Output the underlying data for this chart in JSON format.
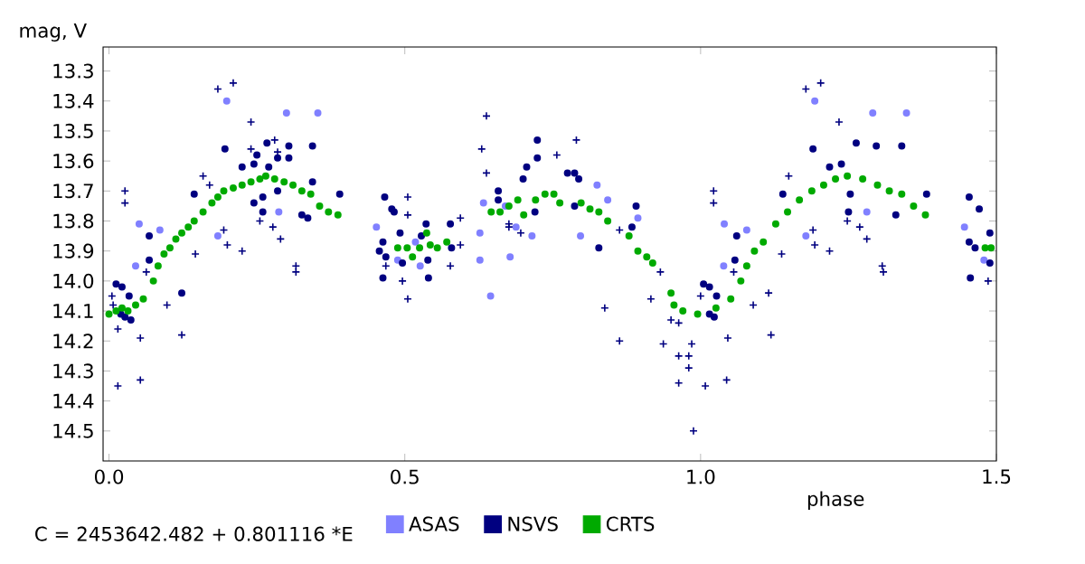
{
  "chart_data": {
    "type": "scatter",
    "xlabel": "phase",
    "ylabel": "mag, V",
    "annotations": [
      "C = 2453642.482 + 0.801116 *E"
    ],
    "xlim": [
      -0.01,
      1.5
    ],
    "ylim": [
      14.6,
      13.22
    ],
    "xticks": [
      {
        "value": 0,
        "label": "0.0"
      },
      {
        "value": 0.5,
        "label": "0.5"
      },
      {
        "value": 1.0,
        "label": "1.0"
      },
      {
        "value": 1.5,
        "label": "1.5"
      }
    ],
    "yticks": [
      13.3,
      13.4,
      13.5,
      13.6,
      13.7,
      13.8,
      13.9,
      {
        "value": 14.0,
        "label": "14.0"
      },
      14.1,
      14.2,
      14.3,
      14.4,
      14.5
    ],
    "legend": "bottom",
    "series": [
      {
        "name": "ASAS",
        "color": "#8080ff",
        "marker": "circle",
        "x": [
          0.051,
          0.045,
          0.086,
          0.199,
          0.184,
          0.3,
          0.353,
          0.287,
          0.452,
          0.488,
          0.518,
          0.526,
          0.627,
          0.627,
          0.633,
          0.645,
          0.678,
          0.688,
          0.715,
          0.67,
          0.797,
          0.825,
          0.843,
          0.894,
          1.04,
          1.039,
          1.078,
          1.178,
          1.193,
          1.291,
          1.348,
          1.281,
          1.446,
          1.479
        ],
        "values": [
          13.81,
          13.95,
          13.83,
          13.4,
          13.85,
          13.44,
          13.44,
          13.77,
          13.82,
          13.93,
          13.87,
          13.95,
          13.84,
          13.93,
          13.74,
          14.05,
          13.92,
          13.82,
          13.85,
          13.75,
          13.85,
          13.68,
          13.73,
          13.79,
          13.81,
          13.95,
          13.83,
          13.85,
          13.4,
          13.44,
          13.44,
          13.77,
          13.82,
          13.93
        ]
      },
      {
        "name": "NSVS",
        "color": "#000080",
        "marker": "circle",
        "x": [
          0.012,
          0.022,
          0.034,
          0.02,
          0.027,
          0.037,
          0.068,
          0.068,
          0.123,
          0.144,
          0.196,
          0.225,
          0.245,
          0.25,
          0.267,
          0.27,
          0.26,
          0.26,
          0.245,
          0.304,
          0.304,
          0.285,
          0.326,
          0.336,
          0.344,
          0.344,
          0.39,
          0.285,
          0.466,
          0.478,
          0.482,
          0.492,
          0.463,
          0.457,
          0.468,
          0.463,
          0.496,
          0.536,
          0.528,
          0.539,
          0.54,
          0.577,
          0.579,
          0.658,
          0.658,
          0.7,
          0.706,
          0.724,
          0.724,
          0.72,
          0.787,
          0.794,
          0.775,
          0.787,
          0.828,
          0.884,
          0.891,
          1.005,
          1.015,
          1.027,
          1.015,
          1.023,
          1.061,
          1.058,
          1.139,
          1.19,
          1.218,
          1.238,
          1.263,
          1.297,
          1.34,
          1.253,
          1.25,
          1.33,
          1.382,
          1.454,
          1.454,
          1.456,
          1.471,
          1.489,
          1.489,
          1.464
        ],
        "values": [
          14.01,
          14.02,
          14.05,
          14.11,
          14.12,
          14.13,
          13.93,
          13.85,
          14.04,
          13.71,
          13.56,
          13.62,
          13.61,
          13.58,
          13.54,
          13.62,
          13.72,
          13.77,
          13.74,
          13.55,
          13.59,
          13.7,
          13.78,
          13.79,
          13.55,
          13.67,
          13.71,
          13.59,
          13.72,
          13.76,
          13.77,
          13.84,
          13.87,
          13.9,
          13.92,
          13.99,
          13.94,
          13.81,
          13.85,
          13.93,
          13.99,
          13.81,
          13.89,
          13.7,
          13.73,
          13.66,
          13.62,
          13.53,
          13.59,
          13.77,
          13.64,
          13.66,
          13.64,
          13.75,
          13.89,
          13.82,
          13.75,
          14.01,
          14.02,
          14.05,
          14.11,
          14.12,
          13.85,
          13.93,
          13.71,
          13.56,
          13.62,
          13.61,
          13.54,
          13.55,
          13.55,
          13.71,
          13.77,
          13.78,
          13.71,
          13.72,
          13.87,
          13.99,
          13.76,
          13.84,
          13.94,
          13.89
        ]
      },
      {
        "color": "#000080",
        "marker": "cross",
        "x": [
          0.005,
          0.007,
          0.015,
          0.015,
          0.027,
          0.027,
          0.053,
          0.053,
          0.063,
          0.098,
          0.123,
          0.146,
          0.159,
          0.17,
          0.184,
          0.21,
          0.194,
          0.2,
          0.225,
          0.24,
          0.24,
          0.255,
          0.277,
          0.28,
          0.29,
          0.316,
          0.316,
          0.285,
          0.505,
          0.505,
          0.496,
          0.505,
          0.468,
          0.577,
          0.594,
          0.594,
          0.63,
          0.638,
          0.638,
          0.676,
          0.676,
          0.696,
          0.757,
          0.79,
          0.863,
          0.838,
          0.863,
          0.916,
          0.932,
          0.937,
          0.95,
          0.963,
          0.963,
          0.963,
          0.98,
          0.98,
          0.985,
          0.988,
          1.0,
          1.008,
          1.022,
          1.022,
          1.044,
          1.046,
          1.056,
          1.089,
          1.115,
          1.119,
          1.137,
          1.149,
          1.178,
          1.203,
          1.19,
          1.193,
          1.218,
          1.234,
          1.248,
          1.269,
          1.281,
          1.307,
          1.309,
          1.486
        ],
        "values": [
          14.05,
          14.08,
          14.16,
          14.35,
          13.7,
          13.74,
          14.19,
          14.33,
          13.97,
          14.08,
          14.18,
          13.91,
          13.65,
          13.68,
          13.36,
          13.34,
          13.83,
          13.88,
          13.9,
          13.47,
          13.56,
          13.8,
          13.82,
          13.53,
          13.86,
          13.95,
          13.97,
          13.57,
          13.72,
          13.78,
          14.0,
          14.06,
          13.95,
          13.95,
          13.79,
          13.88,
          13.56,
          13.45,
          13.64,
          13.81,
          13.82,
          13.84,
          13.58,
          13.53,
          13.83,
          14.09,
          14.2,
          14.06,
          13.97,
          14.21,
          14.13,
          14.14,
          14.25,
          14.34,
          14.25,
          14.29,
          14.21,
          14.5,
          14.05,
          14.35,
          13.7,
          13.74,
          14.33,
          14.19,
          13.97,
          14.08,
          14.04,
          14.18,
          13.91,
          13.65,
          13.36,
          13.34,
          13.83,
          13.88,
          13.9,
          13.47,
          13.8,
          13.82,
          13.86,
          13.95,
          13.97,
          14.0
        ]
      },
      {
        "name": "CRTS",
        "color": "#00aa00",
        "marker": "circle",
        "x": [
          0.0,
          0.012,
          0.022,
          0.032,
          0.045,
          0.058,
          0.075,
          0.083,
          0.093,
          0.103,
          0.113,
          0.123,
          0.134,
          0.144,
          0.159,
          0.174,
          0.184,
          0.194,
          0.21,
          0.225,
          0.24,
          0.255,
          0.265,
          0.28,
          0.296,
          0.311,
          0.326,
          0.341,
          0.356,
          0.371,
          0.387,
          0.488,
          0.504,
          0.513,
          0.525,
          0.537,
          0.543,
          0.555,
          0.571,
          0.646,
          0.661,
          0.676,
          0.691,
          0.701,
          0.721,
          0.737,
          0.752,
          0.762,
          0.798,
          0.813,
          0.828,
          0.843,
          0.879,
          0.894,
          0.909,
          0.919,
          0.95,
          0.955,
          0.97,
          0.995,
          1.026,
          1.051,
          1.068,
          1.078,
          1.091,
          1.106,
          1.127,
          1.147,
          1.167,
          1.188,
          1.208,
          1.228,
          1.248,
          1.274,
          1.299,
          1.319,
          1.34,
          1.36,
          1.38,
          1.481,
          1.491
        ],
        "values": [
          14.11,
          14.1,
          14.09,
          14.1,
          14.08,
          14.06,
          14.0,
          13.95,
          13.91,
          13.89,
          13.86,
          13.84,
          13.82,
          13.8,
          13.77,
          13.74,
          13.72,
          13.7,
          13.69,
          13.68,
          13.67,
          13.66,
          13.65,
          13.66,
          13.67,
          13.68,
          13.7,
          13.71,
          13.75,
          13.77,
          13.78,
          13.89,
          13.89,
          13.92,
          13.89,
          13.84,
          13.88,
          13.89,
          13.87,
          13.77,
          13.77,
          13.75,
          13.73,
          13.78,
          13.73,
          13.71,
          13.71,
          13.74,
          13.74,
          13.76,
          13.77,
          13.8,
          13.85,
          13.9,
          13.92,
          13.94,
          14.04,
          14.08,
          14.1,
          14.11,
          14.09,
          14.06,
          14.0,
          13.95,
          13.9,
          13.87,
          13.81,
          13.77,
          13.73,
          13.7,
          13.68,
          13.66,
          13.65,
          13.66,
          13.68,
          13.7,
          13.71,
          13.75,
          13.78,
          13.89,
          13.89
        ]
      }
    ]
  }
}
